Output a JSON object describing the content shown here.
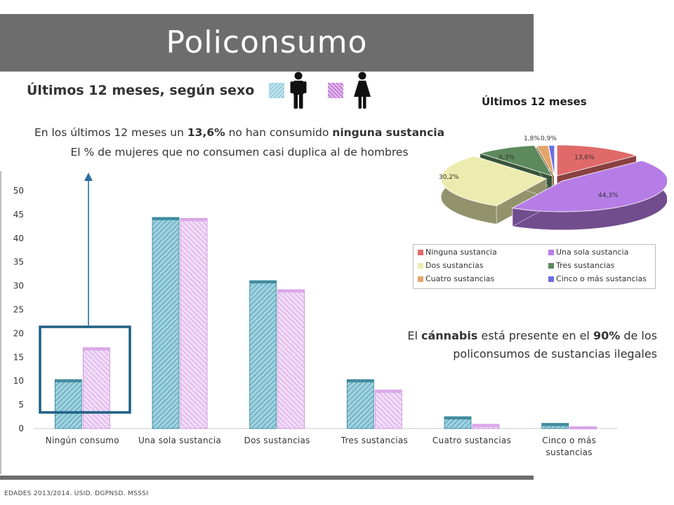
{
  "header": {
    "title": "Policonsumo"
  },
  "subtitle": "Últimos 12 meses, según sexo",
  "legend": {
    "colors": {
      "hombres": "#7ec3d4",
      "mujeres": "#d8a7e6"
    },
    "icons": [
      "male-icon",
      "female-icon"
    ]
  },
  "notes": {
    "line1_a": "En los últimos 12 meses un ",
    "line1_b": "13,6%",
    "line1_c": " no han consumido ",
    "line1_d": "ninguna sustancia",
    "line2": "El % de mujeres que no consumen casi duplica al de hombres"
  },
  "cannabis_note": {
    "a": "El ",
    "b": "cánnabis",
    "c": " está presente en el ",
    "d": "90%",
    "e": " de los policonsumos de sustancias ilegales"
  },
  "footer": "EDADES 2013/2014. USID. DGPNSD. MSSSI",
  "chart_data": [
    {
      "type": "bar",
      "title": "",
      "xlabel": "",
      "ylabel": "",
      "ylim": [
        0,
        50
      ],
      "yticks": [
        0,
        5,
        10,
        15,
        20,
        25,
        30,
        35,
        40,
        45,
        50
      ],
      "categories": [
        "Ningún consumo",
        "Una sola sustancia",
        "Dos sustancias",
        "Tres sustancias",
        "Cuatro sustancias",
        "Cinco o más sustancias"
      ],
      "series": [
        {
          "color": "#5fb0c6",
          "values": [
            10.3,
            44.4,
            31.1,
            10.3,
            2.5,
            1.1
          ]
        },
        {
          "color": "#d9a8e7",
          "values": [
            17.0,
            44.2,
            29.2,
            8.1,
            0.9,
            0.4
          ]
        }
      ],
      "highlight": "Ningún consumo"
    },
    {
      "type": "pie",
      "title": "Últimos 12 meses",
      "labels": [
        "Ninguna sustancia",
        "Una sola sustancia",
        "Dos sustancias",
        "Tres sustancias",
        "Cuatro sustancias",
        "Cinco o más sustancias"
      ],
      "values": [
        13.6,
        44.3,
        30.2,
        9.3,
        1.8,
        0.9
      ],
      "value_labels": [
        "13,6%",
        "44,3%",
        "30,2%",
        "9,3%",
        "1,8%",
        "0,9%"
      ],
      "colors": [
        "#e06a6a",
        "#b77de6",
        "#ececb0",
        "#5d8a5d",
        "#e3a66a",
        "#6e6ee0"
      ],
      "legend_position": "bottom"
    }
  ]
}
